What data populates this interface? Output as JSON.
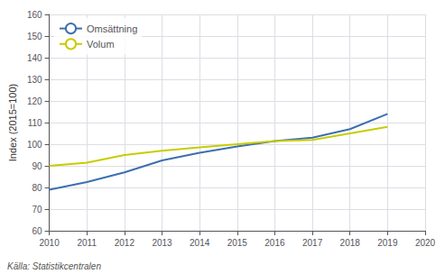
{
  "chart_data": {
    "type": "line",
    "ylabel": "Index (2015=100)",
    "annotations": [
      "Källa: Statistikcentralen"
    ],
    "x": [
      2010,
      2011,
      2012,
      2013,
      2014,
      2015,
      2016,
      2017,
      2018,
      2019
    ],
    "xlim": [
      2010,
      2020
    ],
    "xticks": [
      2010,
      2011,
      2012,
      2013,
      2014,
      2015,
      2016,
      2017,
      2018,
      2019,
      2020
    ],
    "ylim": [
      60,
      160
    ],
    "yticks": [
      60,
      70,
      80,
      90,
      100,
      110,
      120,
      130,
      140,
      150,
      160
    ],
    "series": [
      {
        "name": "Omsättning",
        "color": "#3c6faf",
        "values": [
          79,
          82.5,
          87,
          92.5,
          96,
          99,
          101.5,
          103,
          107,
          114
        ]
      },
      {
        "name": "Volum",
        "color": "#c8cc00",
        "values": [
          90,
          91.5,
          95,
          97,
          98.5,
          100,
          101.5,
          102,
          105,
          108
        ]
      }
    ],
    "grid": true,
    "legend": "upper left"
  }
}
